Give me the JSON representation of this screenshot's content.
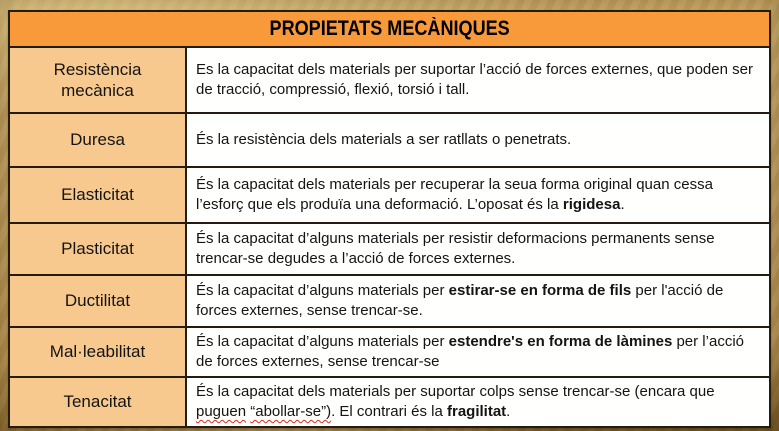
{
  "header": {
    "title": "PROPIETATS MECÀNIQUES"
  },
  "table": {
    "rows": [
      {
        "term": "Resistència mecànica",
        "definition": [
          {
            "text": "Es la capacitat dels materials per suportar l’acció de forces externes, que poden ser de tracció, compressió, flexió, torsió i tall."
          }
        ]
      },
      {
        "term": "Duresa",
        "definition": [
          {
            "text": "És la resistència dels materials a ser ratllats o penetrats."
          }
        ]
      },
      {
        "term": "Elasticitat",
        "definition": [
          {
            "text": "És la capacitat dels materials per recuperar la seua forma original quan cessa l’esforç que els produïa una deformació. L’oposat és la "
          },
          {
            "text": "rigidesa",
            "bold": true
          },
          {
            "text": "."
          }
        ]
      },
      {
        "term": "Plasticitat",
        "definition": [
          {
            "text": "És la capacitat d’alguns materials per resistir deformacions permanents sense trencar-se degudes a l’acció de forces externes."
          }
        ]
      },
      {
        "term": "Ductilitat",
        "definition": [
          {
            "text": "És la capacitat d’alguns materials per "
          },
          {
            "text": "estirar-se en forma de fils",
            "bold": true
          },
          {
            "text": " per l'acció de forces externes, sense trencar-se."
          }
        ]
      },
      {
        "term": "Mal·leabilitat",
        "definition": [
          {
            "text": "És la capacitat d’alguns materials per "
          },
          {
            "text": "estendre's en forma de làmines",
            "bold": true
          },
          {
            "text": " per l’acció de forces externes, sense trencar-se"
          }
        ]
      },
      {
        "term": "Tenacitat",
        "definition": [
          {
            "text": "És la capacitat dels materials per suportar colps sense trencar-se (encara que "
          },
          {
            "text": "puguen",
            "spellcheck": true
          },
          {
            "text": " "
          },
          {
            "text": "“abollar-se”)",
            "spellcheck": true
          },
          {
            "text": ". El contrari és la "
          },
          {
            "text": "fragilitat",
            "bold": true
          },
          {
            "text": "."
          }
        ]
      }
    ]
  },
  "colors": {
    "background": "#C2A05E",
    "header_bg": "#F8993A",
    "term_bg": "#F7C98F",
    "definition_bg": "#FFFFFE",
    "border": "#241C12",
    "text": "#141414",
    "spellcheck_underline": "#E02A1A"
  }
}
